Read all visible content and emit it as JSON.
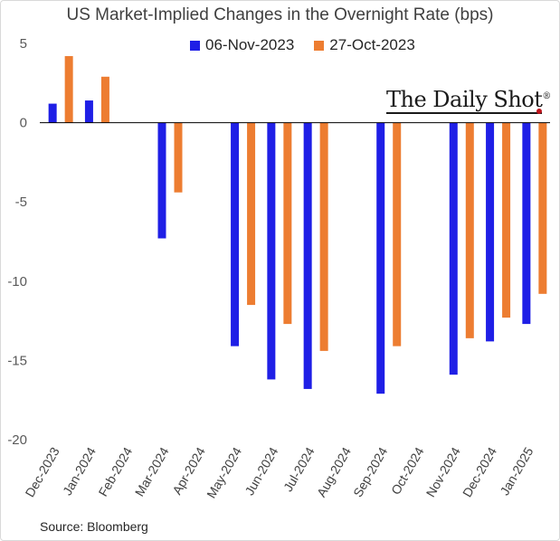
{
  "chart_data": {
    "type": "bar",
    "title": "US Market-Implied Changes in the Overnight Rate (bps)",
    "xlabel": "",
    "ylabel": "",
    "ylim": [
      -20,
      5
    ],
    "yticks": [
      5,
      0,
      -5,
      -10,
      -15,
      -20
    ],
    "categories": [
      "Dec-2023",
      "Jan-2024",
      "Feb-2024",
      "Mar-2024",
      "Apr-2024",
      "May-2024",
      "Jun-2024",
      "Jul-2024",
      "Aug-2024",
      "Sep-2024",
      "Oct-2024",
      "Nov-2024",
      "Dec-2024",
      "Jan-2025"
    ],
    "series": [
      {
        "name": "06-Nov-2023",
        "color": "#1f1fe6",
        "values": [
          1.2,
          1.4,
          null,
          -7.3,
          null,
          -14.1,
          -16.2,
          -16.8,
          null,
          -17.1,
          null,
          -15.9,
          -13.8,
          -12.7
        ]
      },
      {
        "name": "27-Oct-2023",
        "color": "#ed7d31",
        "values": [
          4.2,
          2.9,
          null,
          -4.4,
          null,
          -11.5,
          -12.7,
          -14.4,
          null,
          -14.1,
          null,
          -13.6,
          -12.3,
          -10.8
        ]
      }
    ],
    "legend": "top-center"
  },
  "branding": {
    "name": "The Daily Shot",
    "mark": "®"
  },
  "source": "Source: Bloomberg"
}
